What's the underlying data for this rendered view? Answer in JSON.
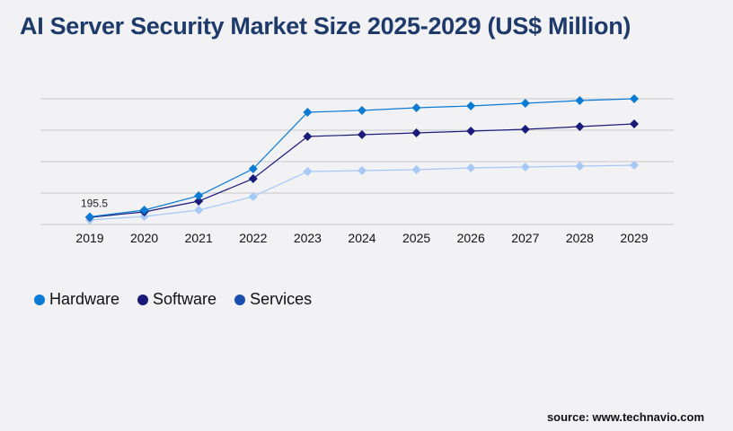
{
  "title": "AI Server Security Market Size 2025-2029 (US$ Million)",
  "source": "source: www.technavio.com",
  "chart_data": {
    "type": "line",
    "title": "AI Server Security Market Size 2025-2029 (US$ Million)",
    "categories": [
      "2019",
      "2020",
      "2021",
      "2022",
      "2023",
      "2024",
      "2025",
      "2026",
      "2027",
      "2028",
      "2029"
    ],
    "ylim": [
      0,
      3200
    ],
    "grid": true,
    "legend": "bottom-left",
    "series": [
      {
        "name": "Hardware",
        "color": "#0a7ad4",
        "values": [
          195.5,
          366,
          731,
          1417,
          2857,
          2903,
          2971,
          3017,
          3086,
          3154,
          3200
        ]
      },
      {
        "name": "Software",
        "color": "#1a1a7a",
        "values": [
          183,
          320,
          594,
          1166,
          2240,
          2286,
          2331,
          2377,
          2423,
          2491,
          2560
        ]
      },
      {
        "name": "Services",
        "color": "#a6c8f5",
        "legend_color": "#1a4fb0",
        "values": [
          114,
          206,
          366,
          709,
          1349,
          1371,
          1394,
          1440,
          1463,
          1486,
          1509
        ]
      }
    ],
    "annotations": [
      {
        "category": "2019",
        "series": "Hardware",
        "text": "195.5"
      }
    ]
  }
}
